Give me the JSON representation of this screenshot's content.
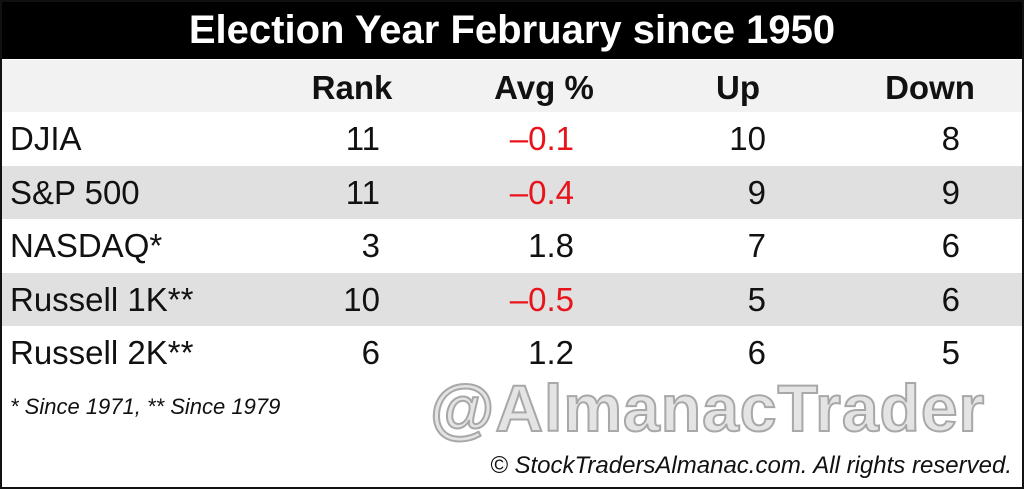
{
  "title": "Election Year February since 1950",
  "table": {
    "headers": [
      "Rank",
      "Avg %",
      "Up",
      "Down"
    ],
    "rows": [
      [
        "DJIA",
        "11",
        "–0.1",
        "10",
        "8"
      ],
      [
        "S&P 500",
        "11",
        "–0.4",
        "9",
        "9"
      ],
      [
        "NASDAQ*",
        "3",
        "1.8",
        "7",
        "6"
      ],
      [
        "Russell 1K**",
        "10",
        "–0.5",
        "5",
        "6"
      ],
      [
        "Russell 2K**",
        "6",
        "1.2",
        "6",
        "5"
      ]
    ]
  },
  "footnote": "* Since 1971, ** Since 1979",
  "watermark": "@AlmanacTrader",
  "copyright": "© StockTradersAlmanac.com. All rights reserved."
}
